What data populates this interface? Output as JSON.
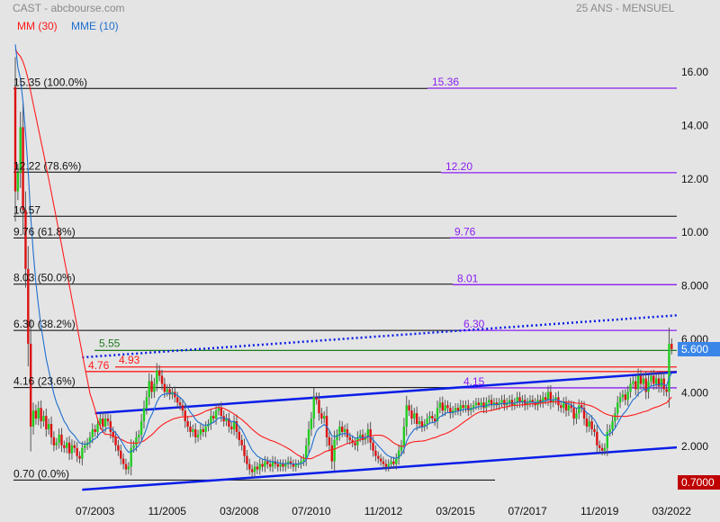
{
  "header": {
    "title": "CAST - abcbourse.com",
    "period": "25 ANS - MENSUEL",
    "legend": [
      {
        "label": "MM (30)",
        "color": "#ff1a1a"
      },
      {
        "label": "MME (10)",
        "color": "#1e6fd0"
      }
    ]
  },
  "price_tags": {
    "last": {
      "label": "5.600",
      "value": 5.6,
      "color": "#3a86e8"
    },
    "low": {
      "label": "0.7000",
      "value": 0.7,
      "color": "#c00000"
    }
  },
  "chart_data": {
    "type": "candlestick",
    "interval": "monthly",
    "start_month": "2000-12",
    "first_open": 15.4,
    "up_color": "#22cc22",
    "down_color": "#dd1111",
    "closes": [
      11.5,
      12.2,
      13.9,
      10.8,
      8.6,
      5.8,
      2.7,
      3.3,
      3.0,
      3.4,
      2.9,
      3.1,
      2.6,
      2.8,
      2.3,
      2.0,
      2.1,
      2.4,
      2.0,
      1.9,
      2.1,
      1.7,
      2.0,
      1.9,
      1.6,
      1.5,
      1.9,
      2.0,
      2.1,
      2.3,
      2.6,
      2.5,
      2.8,
      3.0,
      2.7,
      3.0,
      2.9,
      2.5,
      2.3,
      2.0,
      1.8,
      1.5,
      1.3,
      1.1,
      1.2,
      1.9,
      2.0,
      2.3,
      2.4,
      2.9,
      3.4,
      3.8,
      4.4,
      4.0,
      4.3,
      4.8,
      4.6,
      4.3,
      4.0,
      4.1,
      3.9,
      4.0,
      3.8,
      3.6,
      3.5,
      3.3,
      2.9,
      2.7,
      2.5,
      2.6,
      2.3,
      2.4,
      2.6,
      2.5,
      2.7,
      2.8,
      3.1,
      3.0,
      3.3,
      3.4,
      3.1,
      2.9,
      3.0,
      2.7,
      2.6,
      2.9,
      2.5,
      2.2,
      2.0,
      1.6,
      1.3,
      1.1,
      1.0,
      1.2,
      1.1,
      1.3,
      1.2,
      1.4,
      1.3,
      1.2,
      1.4,
      1.3,
      1.2,
      1.3,
      1.2,
      1.3,
      1.4,
      1.3,
      1.2,
      1.3,
      1.3,
      1.4,
      1.5,
      2.0,
      2.6,
      3.0,
      3.8,
      3.7,
      3.2,
      3.0,
      3.1,
      2.3,
      2.0,
      1.4,
      2.2,
      2.4,
      2.7,
      2.5,
      2.6,
      2.3,
      2.2,
      2.1,
      2.0,
      2.3,
      2.4,
      2.2,
      2.3,
      2.6,
      2.1,
      1.8,
      1.6,
      1.5,
      1.4,
      1.3,
      1.2,
      1.3,
      1.4,
      1.3,
      1.5,
      1.8,
      2.0,
      2.7,
      3.5,
      3.3,
      3.0,
      3.2,
      2.8,
      2.9,
      2.7,
      2.8,
      3.0,
      3.1,
      3.0,
      2.9,
      3.4,
      3.6,
      3.3,
      3.5,
      3.4,
      3.2,
      3.3,
      3.4,
      3.3,
      3.5,
      3.4,
      3.5,
      3.3,
      3.4,
      3.5,
      3.6,
      3.5,
      3.6,
      3.4,
      3.6,
      3.7,
      3.5,
      3.6,
      3.5,
      3.6,
      3.7,
      3.5,
      3.6,
      3.7,
      3.5,
      3.6,
      3.8,
      3.6,
      3.7,
      3.5,
      3.6,
      3.7,
      3.6,
      3.5,
      3.7,
      3.6,
      3.8,
      3.7,
      4.0,
      3.6,
      3.7,
      3.8,
      3.5,
      3.4,
      3.6,
      3.3,
      3.5,
      3.4,
      3.0,
      3.2,
      3.5,
      3.4,
      3.0,
      2.7,
      2.9,
      2.6,
      2.5,
      2.0,
      1.9,
      1.8,
      1.9,
      2.5,
      2.6,
      2.9,
      3.2,
      3.6,
      3.8,
      3.9,
      3.7,
      4.0,
      4.3,
      4.4,
      4.1,
      4.6,
      4.3,
      4.5,
      4.0,
      4.4,
      4.6,
      4.3,
      4.5,
      4.2,
      4.5,
      4.1,
      4.0,
      5.8,
      5.6
    ],
    "indicators": [
      {
        "name": "MM (30)",
        "kind": "sma",
        "period": 30,
        "color": "#ff1a1a"
      },
      {
        "name": "MME (10)",
        "kind": "ema",
        "period": 10,
        "color": "#1e6fd0"
      }
    ],
    "y_axis": {
      "range": [
        0.3,
        18.6
      ],
      "ticks": [
        {
          "value": 16,
          "label": "16.00"
        },
        {
          "value": 14,
          "label": "14.00"
        },
        {
          "value": 12,
          "label": "12.00"
        },
        {
          "value": 10,
          "label": "10.00"
        },
        {
          "value": 8,
          "label": "8.000"
        },
        {
          "value": 6,
          "label": "6.000"
        },
        {
          "value": 4,
          "label": "4.000"
        },
        {
          "value": 2,
          "label": "2.000"
        }
      ]
    },
    "x_axis": {
      "ticks": [
        {
          "month": "2003-07",
          "label": "07/2003"
        },
        {
          "month": "2005-11",
          "label": "11/2005"
        },
        {
          "month": "2008-03",
          "label": "03/2008"
        },
        {
          "month": "2010-07",
          "label": "07/2010"
        },
        {
          "month": "2012-11",
          "label": "11/2012"
        },
        {
          "month": "2015-03",
          "label": "03/2015"
        },
        {
          "month": "2017-07",
          "label": "07/2017"
        },
        {
          "month": "2019-11",
          "label": "11/2019"
        },
        {
          "month": "2022-03",
          "label": "03/2022"
        }
      ]
    },
    "fibonacci": [
      {
        "value": 15.35,
        "label": "15.35",
        "pct": "(100.0%)"
      },
      {
        "value": 12.22,
        "label": "12.22",
        "pct": "(78.6%)"
      },
      {
        "value": 10.57,
        "label": "10.57",
        "pct": ""
      },
      {
        "value": 9.76,
        "label": "9.76",
        "pct": "(61.8%)"
      },
      {
        "value": 8.03,
        "label": "8.03",
        "pct": "(50.0%)"
      },
      {
        "value": 6.3,
        "label": "6.30",
        "pct": "(38.2%)"
      },
      {
        "value": 4.16,
        "label": "4.16",
        "pct": "(23.6%)"
      },
      {
        "value": 0.7,
        "label": "0.70",
        "pct": "(0.0%)"
      }
    ],
    "projection_levels": {
      "color": "#8a1ef0",
      "levels": [
        {
          "value": 15.36,
          "label": "15.36"
        },
        {
          "value": 12.2,
          "label": "12.20"
        },
        {
          "value": 9.76,
          "label": "9.76"
        },
        {
          "value": 8.01,
          "label": "8.01"
        },
        {
          "value": 6.3,
          "label": "6.30"
        },
        {
          "value": 4.15,
          "label": "4.15"
        }
      ]
    },
    "support_resistance": [
      {
        "value": 5.55,
        "label": "5.55",
        "color": "#1f7a1f"
      },
      {
        "value": 4.93,
        "label": "4.93",
        "color": "#ff1a1a"
      },
      {
        "value": 4.76,
        "label": "4.76",
        "color": "#ff1a1a"
      }
    ],
    "trend_lines": [
      {
        "name": "channel-upper",
        "from": [
          "2003-07",
          3.2
        ],
        "to": [
          "2022-06",
          4.75
        ],
        "color": "#0a1ee8",
        "style": "solid"
      },
      {
        "name": "channel-lower",
        "from": [
          "2003-02",
          0.34
        ],
        "to": [
          "2022-06",
          1.93
        ],
        "color": "#0a1ee8",
        "style": "solid"
      },
      {
        "name": "dotted-resistance",
        "from": [
          "2003-02",
          5.29
        ],
        "to": [
          "2022-06",
          6.87
        ],
        "color": "#0a1ee8",
        "style": "dotted"
      }
    ]
  }
}
